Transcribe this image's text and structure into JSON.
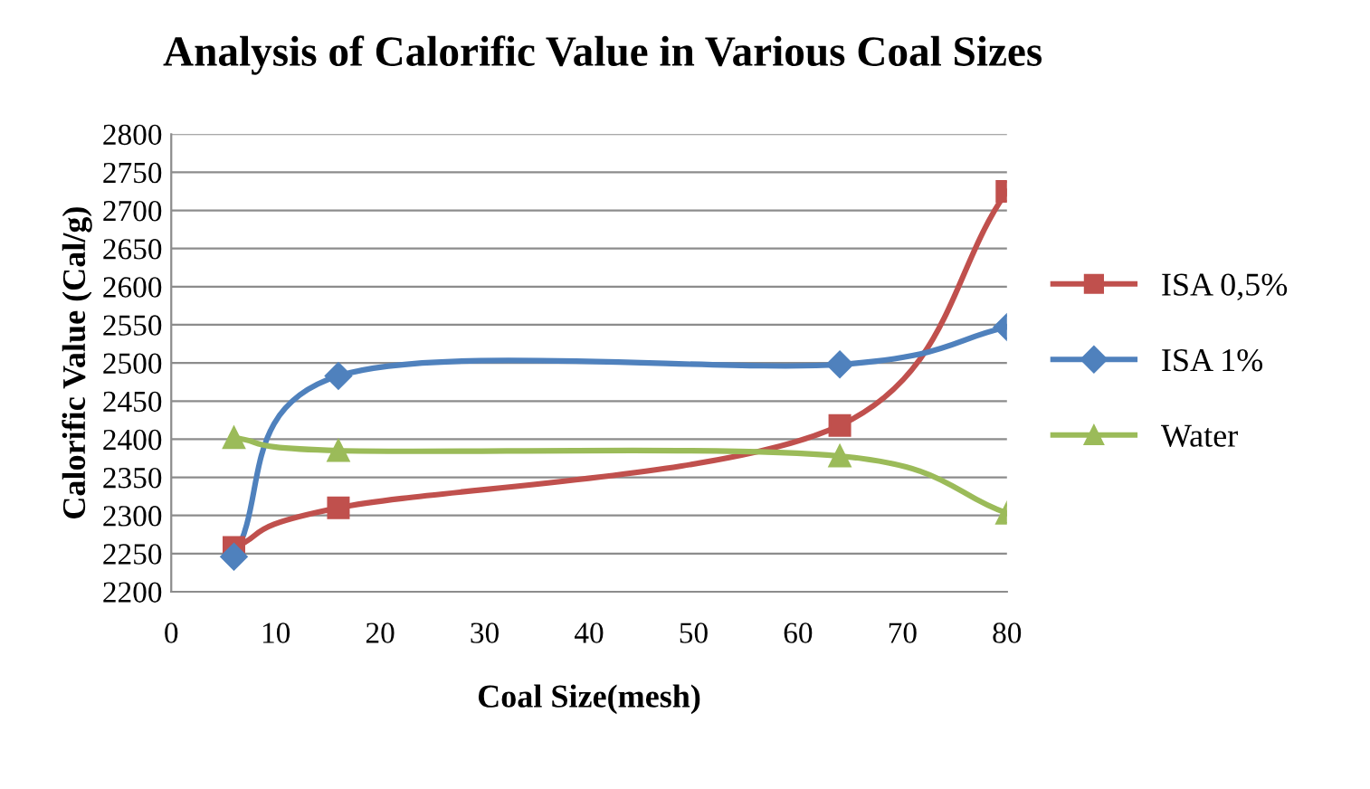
{
  "chart_data": {
    "type": "line",
    "title": "Analysis of Calorific Value in Various Coal Sizes",
    "xlabel": "Coal Size(mesh)",
    "ylabel": "Calorific Value (Cal/g)",
    "x": [
      6,
      16,
      64,
      80
    ],
    "series": [
      {
        "name": "ISA 0,5%",
        "color": "#c0504d",
        "marker": "square",
        "values": [
          2258,
          2310,
          2418,
          2725
        ]
      },
      {
        "name": "ISA 1%",
        "color": "#4f81bd",
        "marker": "diamond",
        "values": [
          2246,
          2483,
          2498,
          2547
        ]
      },
      {
        "name": "Water",
        "color": "#9bbb59",
        "marker": "triangle",
        "values": [
          2402,
          2385,
          2378,
          2303
        ]
      }
    ],
    "xlim": [
      0,
      80
    ],
    "xticks": [
      0,
      10,
      20,
      30,
      40,
      50,
      60,
      70,
      80
    ],
    "ylim": [
      2200,
      2800
    ],
    "yticks": [
      2200,
      2250,
      2300,
      2350,
      2400,
      2450,
      2500,
      2550,
      2600,
      2650,
      2700,
      2750,
      2800
    ],
    "grid": "y",
    "legend": "right",
    "line_style": "solid"
  }
}
